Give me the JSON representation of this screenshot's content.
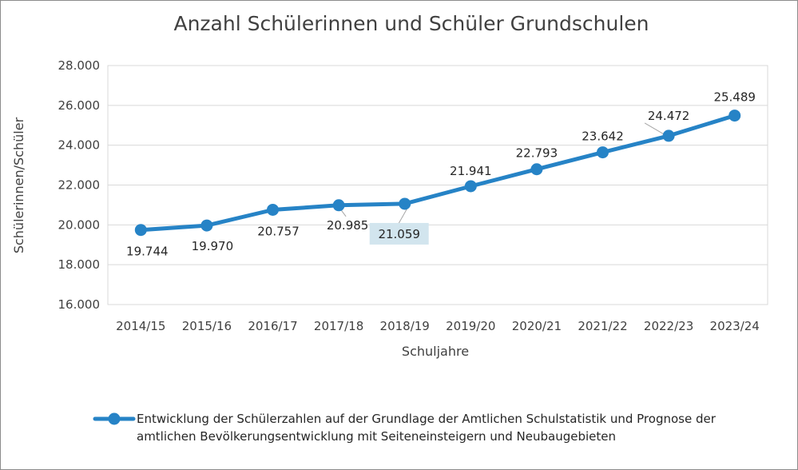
{
  "chart_data": {
    "type": "line",
    "title": "Anzahl Schülerinnen und Schüler Grundschulen",
    "xlabel": "Schuljahre",
    "ylabel": "Schülerinnen/Schüler",
    "categories": [
      "2014/15",
      "2015/16",
      "2016/17",
      "2017/18",
      "2018/19",
      "2019/20",
      "2020/21",
      "2021/22",
      "2022/23",
      "2023/24"
    ],
    "ylim": [
      16000,
      28000
    ],
    "yticks": [
      16000,
      18000,
      20000,
      22000,
      24000,
      26000,
      28000
    ],
    "ytick_labels": [
      "16.000",
      "18.000",
      "20.000",
      "22.000",
      "24.000",
      "26.000",
      "28.000"
    ],
    "grid": true,
    "series": [
      {
        "name": "Entwicklung der Schülerzahlen auf der Grundlage der Amtlichen Schulstatistik und Prognose der amtlichen Bevölkerungsentwicklung mit Seiteneinsteigern und Neubaugebieten",
        "values": [
          19744,
          19970,
          20757,
          20985,
          21059,
          21941,
          22793,
          23642,
          24472,
          25489
        ],
        "labels": [
          "19.744",
          "19.970",
          "20.757",
          "20.985",
          "21.059",
          "21.941",
          "22.793",
          "23.642",
          "24.472",
          "25.489"
        ],
        "color": "#2683C6",
        "highlight_index": 4,
        "highlight_color": "#D2E5EE"
      }
    ],
    "legend": {
      "position": "bottom",
      "lines": [
        "Entwicklung der Schülerzahlen auf der Grundlage der Amtlichen Schulstatistik und Prognose der",
        "amtlichen Bevölkerungsentwicklung mit Seiteneinsteigern und Neubaugebieten"
      ]
    }
  }
}
